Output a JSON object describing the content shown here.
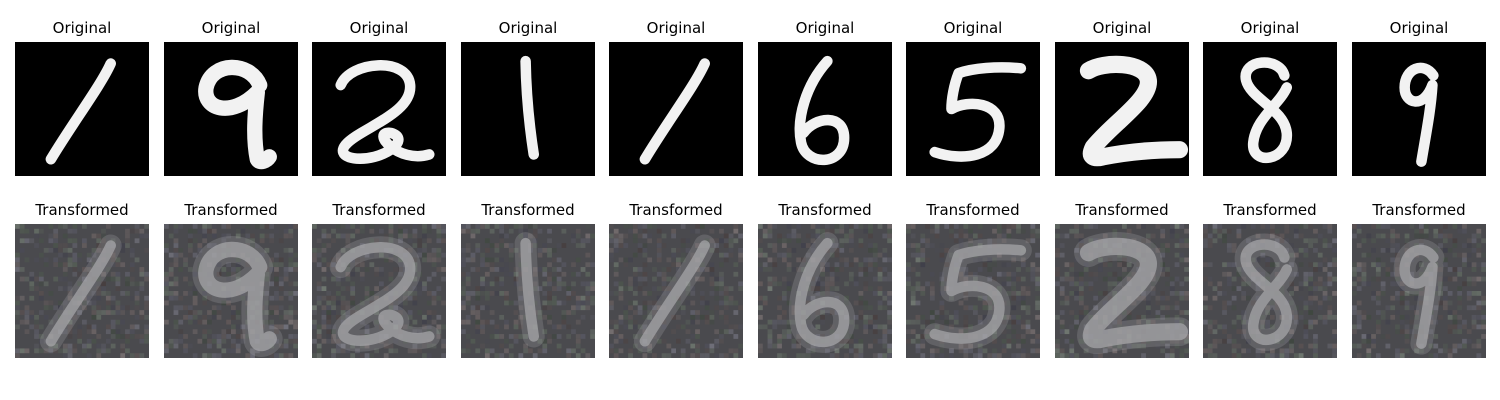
{
  "rows": [
    {
      "title": "Original",
      "style": "original",
      "digits": [
        "1",
        "9",
        "2",
        "1",
        "1",
        "6",
        "5",
        "2",
        "8",
        "9"
      ]
    },
    {
      "title": "Transformed",
      "style": "transformed",
      "digits": [
        "1",
        "9",
        "2",
        "1",
        "1",
        "6",
        "5",
        "2",
        "8",
        "9"
      ]
    }
  ],
  "colors": {
    "original_bg": "#000000",
    "original_stroke": "#f2f2f2",
    "transformed_bg": "#4a4a4e",
    "transformed_stroke": "#a9a9ad"
  }
}
